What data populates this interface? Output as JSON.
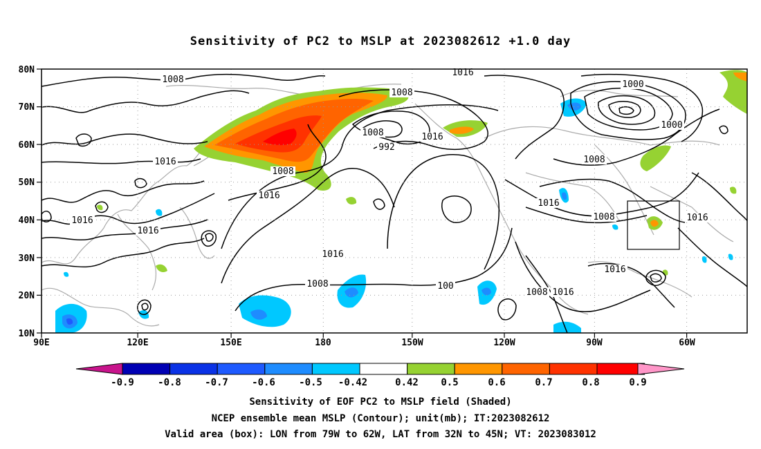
{
  "title": "Sensitivity of PC2 to MSLP at 2023082612 +1.0 day",
  "map": {
    "lon_labels": [
      "90E",
      "120E",
      "150E",
      "180",
      "150W",
      "120W",
      "90W",
      "60W"
    ],
    "lat_labels": [
      "80N",
      "70N",
      "60N",
      "50N",
      "40N",
      "30N",
      "20N",
      "10N"
    ],
    "lon_range": [
      90,
      310
    ],
    "lat_range": [
      10,
      80
    ],
    "valid_box": {
      "lon_west": "79W",
      "lon_east": "62W",
      "lat_south": "32N",
      "lat_north": "45N"
    },
    "contour_labels": [
      "1008",
      "1016",
      "1008",
      "1000",
      "1008",
      "1016",
      "1000",
      "992",
      "1008",
      "1016",
      "1008",
      "1016",
      "1016",
      "1008",
      "1016",
      "1016",
      "1016",
      "1016",
      "1008",
      "100",
      "1016",
      "1008",
      "1016"
    ]
  },
  "colorbar": {
    "labels": [
      "-0.9",
      "-0.8",
      "-0.7",
      "-0.6",
      "-0.5",
      "-0.42",
      "0.42",
      "0.5",
      "0.6",
      "0.7",
      "0.8",
      "0.9"
    ],
    "colors": [
      "#0000b4",
      "#0a32e6",
      "#1e5aff",
      "#1e8cff",
      "#00c8ff",
      "#ffffff",
      "#96d232",
      "#ff9600",
      "#ff6400",
      "#ff3200",
      "#ff0000"
    ],
    "low_arrow_color": "#c8148c",
    "high_arrow_color": "#ff96c8"
  },
  "captions": {
    "line1": "Sensitivity of EOF PC2 to MSLP field (Shaded)",
    "line2": "NCEP ensemble mean MSLP (Contour); unit(mb); IT:2023082612",
    "line3": "Valid area (box): LON from 79W to 62W, LAT from 32N to 45N; VT: 2023083012"
  }
}
